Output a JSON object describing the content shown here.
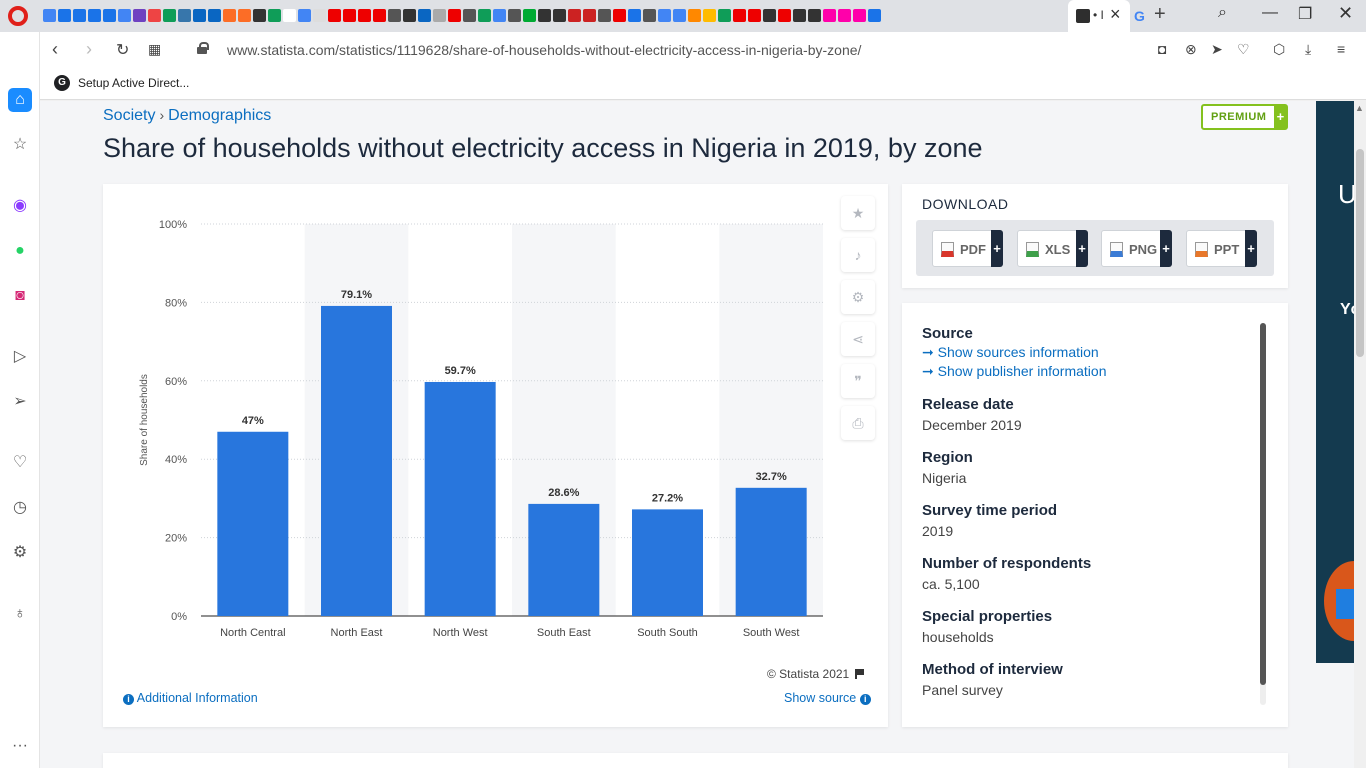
{
  "browser": {
    "active_tab_title": "• I",
    "url": "www.statista.com/statistics/1119628/share-of-households-without-electricity-access-in-nigeria-by-zone/",
    "bookmark": {
      "icon_letter": "G",
      "label": "Setup Active Direct..."
    }
  },
  "page": {
    "breadcrumb": [
      "Society",
      "Demographics"
    ],
    "premium_label": "PREMIUM",
    "premium_plus": "+",
    "title": "Share of households without electricity access in Nigeria in 2019, by zone"
  },
  "chart_data": {
    "type": "bar",
    "categories": [
      "North Central",
      "North East",
      "North West",
      "South East",
      "South South",
      "South West"
    ],
    "values": [
      47,
      79.1,
      59.7,
      28.6,
      27.2,
      32.7
    ],
    "value_labels": [
      "47%",
      "79.1%",
      "59.7%",
      "28.6%",
      "27.2%",
      "32.7%"
    ],
    "ylabel": "Share of households",
    "xlabel": "",
    "ylim": [
      0,
      100
    ],
    "yticks": [
      "0%",
      "20%",
      "40%",
      "60%",
      "80%",
      "100%"
    ],
    "color": "#2876dd",
    "grid": true
  },
  "chart_footer": {
    "credit": "© Statista 2021",
    "additional_info": "Additional Information",
    "show_source": "Show source"
  },
  "download": {
    "title": "DOWNLOAD",
    "buttons": [
      {
        "label": "PDF",
        "color": "#d9362b"
      },
      {
        "label": "XLS",
        "color": "#3ea04a"
      },
      {
        "label": "PNG",
        "color": "#3a7bd5"
      },
      {
        "label": "PPT",
        "color": "#e8772a"
      }
    ],
    "plus": "+"
  },
  "meta": {
    "source_label": "Source",
    "source_link": "Show sources information",
    "publisher_link": "Show publisher information",
    "release_label": "Release date",
    "release_value": "December 2019",
    "region_label": "Region",
    "region_value": "Nigeria",
    "survey_label": "Survey time period",
    "survey_value": "2019",
    "respondents_label": "Number of respondents",
    "respondents_value": "ca. 5,100",
    "special_label": "Special properties",
    "special_value": "households",
    "method_label": "Method of interview",
    "method_value": "Panel survey"
  },
  "ad": {
    "text1": "U",
    "text2": "Yc"
  }
}
